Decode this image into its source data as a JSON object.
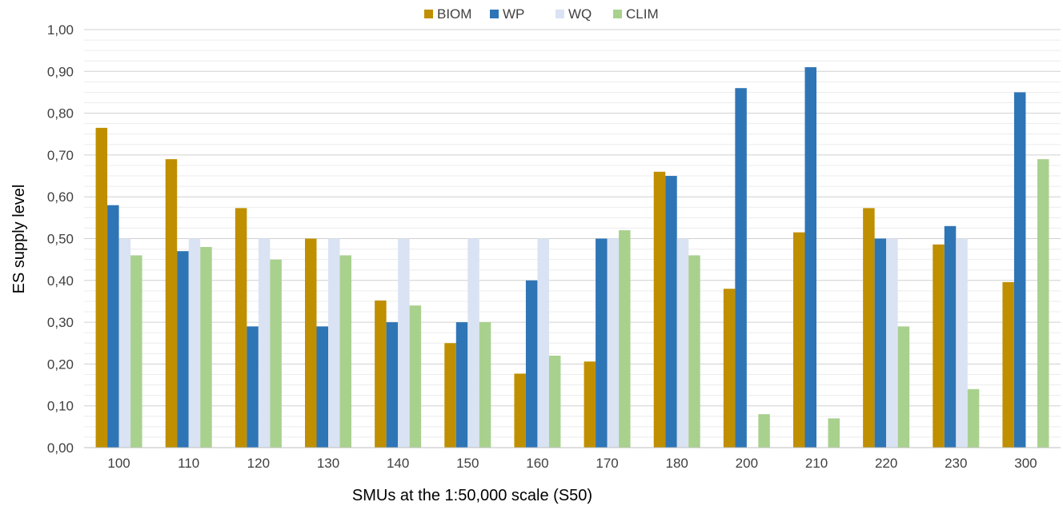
{
  "chart_data": {
    "type": "bar",
    "title": "",
    "xlabel": "SMUs at the 1:50,000 scale (S50)",
    "ylabel": "ES supply level",
    "ylim": [
      0,
      1
    ],
    "y_tick_step": 0.1,
    "y_minor_step": 0.025,
    "y_tick_labels": [
      "0,00",
      "0,10",
      "0,20",
      "0,30",
      "0,40",
      "0,50",
      "0,60",
      "0,70",
      "0,80",
      "0,90",
      "1,00"
    ],
    "grid": true,
    "legend_position": "top",
    "categories": [
      "100",
      "110",
      "120",
      "130",
      "140",
      "150",
      "160",
      "170",
      "180",
      "200",
      "210",
      "220",
      "230",
      "300"
    ],
    "series": [
      {
        "name": "BIOM",
        "color": "#bf8f00",
        "values": [
          0.765,
          0.69,
          0.573,
          0.5,
          0.352,
          0.25,
          0.177,
          0.206,
          0.66,
          0.38,
          0.515,
          0.573,
          0.486,
          0.396
        ]
      },
      {
        "name": "WP",
        "color": "#2e75b6",
        "values": [
          0.58,
          0.47,
          0.29,
          0.29,
          0.3,
          0.3,
          0.4,
          0.5,
          0.65,
          0.86,
          0.91,
          0.5,
          0.53,
          0.85
        ]
      },
      {
        "name": "WQ",
        "color": "#dae3f3",
        "values": [
          0.5,
          0.5,
          0.5,
          0.5,
          0.5,
          0.5,
          0.5,
          0.5,
          0.5,
          0.0,
          0.0,
          0.5,
          0.5,
          0.0
        ]
      },
      {
        "name": "CLIM",
        "color": "#a9d18e",
        "values": [
          0.46,
          0.48,
          0.45,
          0.46,
          0.34,
          0.3,
          0.22,
          0.52,
          0.46,
          0.08,
          0.07,
          0.29,
          0.14,
          0.69
        ]
      }
    ]
  }
}
